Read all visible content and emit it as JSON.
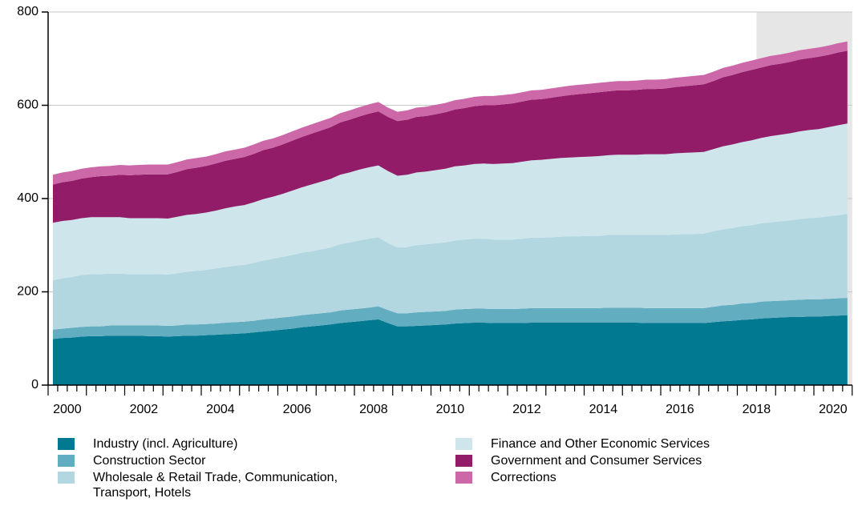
{
  "chart_data": {
    "type": "stacked_area",
    "categories": [
      "2000",
      null,
      null,
      null,
      null,
      null,
      null,
      null,
      "2002",
      null,
      null,
      null,
      null,
      null,
      null,
      null,
      "2004",
      null,
      null,
      null,
      null,
      null,
      null,
      null,
      "2006",
      null,
      null,
      null,
      null,
      null,
      null,
      null,
      "2008",
      null,
      null,
      null,
      null,
      null,
      null,
      null,
      "2010",
      null,
      null,
      null,
      null,
      null,
      null,
      null,
      "2012",
      null,
      null,
      null,
      null,
      null,
      null,
      null,
      "2014",
      null,
      null,
      null,
      null,
      null,
      null,
      null,
      "2016",
      null,
      null,
      null,
      null,
      null,
      null,
      null,
      "2018",
      null,
      null,
      null,
      null,
      null,
      null,
      null,
      "2020",
      null,
      null,
      null
    ],
    "ylim": [
      0,
      800
    ],
    "yticks": [
      0,
      200,
      400,
      600,
      800
    ],
    "grid": true,
    "shaded_from_category": 74,
    "shade_color": "#e6e6e6",
    "series": [
      {
        "name": "Industry (incl. Agriculture)",
        "color": "#007991",
        "values": [
          99,
          101,
          102,
          104,
          105,
          105,
          106,
          106,
          106,
          106,
          105,
          105,
          104,
          105,
          106,
          106,
          107,
          108,
          109,
          110,
          111,
          113,
          115,
          117,
          119,
          121,
          124,
          126,
          128,
          130,
          133,
          135,
          137,
          139,
          141,
          133,
          126,
          126,
          127,
          128,
          129,
          130,
          132,
          133,
          134,
          134,
          133,
          133,
          133,
          133,
          134,
          134,
          134,
          134,
          134,
          134,
          134,
          134,
          134,
          134,
          134,
          134,
          133,
          133,
          133,
          133,
          133,
          133,
          133,
          135,
          137,
          138,
          140,
          141,
          143,
          144,
          145,
          146,
          146,
          147,
          147,
          148,
          149,
          150
        ]
      },
      {
        "name": "Construction Sector",
        "color": "#62adc0",
        "values": [
          20,
          20,
          21,
          21,
          21,
          21,
          22,
          22,
          22,
          22,
          23,
          23,
          23,
          23,
          24,
          24,
          24,
          24,
          25,
          25,
          25,
          25,
          26,
          26,
          26,
          26,
          26,
          26,
          26,
          26,
          27,
          27,
          27,
          27,
          28,
          28,
          28,
          28,
          29,
          29,
          29,
          29,
          30,
          30,
          30,
          30,
          30,
          30,
          30,
          31,
          31,
          31,
          31,
          31,
          31,
          31,
          31,
          31,
          32,
          32,
          32,
          32,
          32,
          32,
          32,
          32,
          32,
          32,
          32,
          33,
          34,
          34,
          35,
          35,
          36,
          36,
          36,
          36,
          37,
          37,
          37,
          37,
          37,
          37
        ]
      },
      {
        "name": "Wholesale & Retail Trade, Communication, Transport, Hotels",
        "color": "#b2d7e1",
        "values": [
          106,
          108,
          109,
          111,
          112,
          112,
          111,
          111,
          110,
          110,
          110,
          110,
          110,
          112,
          113,
          115,
          116,
          118,
          119,
          121,
          122,
          124,
          126,
          128,
          130,
          132,
          134,
          135,
          137,
          139,
          142,
          144,
          146,
          148,
          148,
          144,
          141,
          142,
          144,
          145,
          146,
          147,
          148,
          149,
          150,
          150,
          149,
          149,
          149,
          150,
          151,
          151,
          152,
          153,
          154,
          154,
          155,
          155,
          156,
          156,
          156,
          156,
          157,
          157,
          157,
          158,
          159,
          159,
          160,
          162,
          163,
          165,
          166,
          167,
          168,
          169,
          170,
          171,
          173,
          174,
          175,
          177,
          178,
          180
        ]
      },
      {
        "name": "Finance and Other Economic Services",
        "color": "#cde5eb",
        "values": [
          123,
          123,
          122,
          122,
          122,
          122,
          121,
          121,
          120,
          120,
          120,
          120,
          120,
          121,
          122,
          122,
          123,
          124,
          126,
          127,
          128,
          130,
          132,
          133,
          135,
          138,
          140,
          143,
          145,
          147,
          149,
          150,
          152,
          153,
          154,
          154,
          154,
          155,
          156,
          156,
          157,
          158,
          159,
          159,
          160,
          161,
          162,
          163,
          164,
          165,
          166,
          167,
          168,
          169,
          169,
          170,
          170,
          171,
          171,
          172,
          172,
          172,
          173,
          173,
          173,
          174,
          174,
          175,
          175,
          176,
          178,
          179,
          180,
          182,
          183,
          185,
          186,
          187,
          188,
          189,
          190,
          191,
          193,
          194
        ]
      },
      {
        "name": "Government and Consumer Services",
        "color": "#921c68",
        "values": [
          82,
          83,
          84,
          85,
          86,
          88,
          89,
          91,
          92,
          93,
          94,
          94,
          95,
          96,
          98,
          99,
          100,
          101,
          102,
          102,
          103,
          104,
          105,
          105,
          106,
          107,
          108,
          109,
          110,
          111,
          112,
          113,
          114,
          115,
          116,
          116,
          117,
          118,
          119,
          119,
          120,
          121,
          122,
          123,
          124,
          125,
          126,
          127,
          128,
          129,
          130,
          130,
          131,
          132,
          134,
          135,
          136,
          137,
          137,
          138,
          138,
          139,
          140,
          140,
          141,
          142,
          143,
          144,
          145,
          146,
          148,
          149,
          150,
          151,
          151,
          152,
          152,
          153,
          154,
          154,
          155,
          155,
          156,
          156
        ]
      },
      {
        "name": "Corrections",
        "color": "#cc68a7",
        "values": [
          21,
          21,
          21,
          21,
          21,
          21,
          21,
          21,
          21,
          21,
          21,
          21,
          21,
          21,
          21,
          21,
          20,
          20,
          20,
          20,
          20,
          20,
          20,
          20,
          20,
          20,
          20,
          20,
          20,
          20,
          20,
          20,
          20,
          20,
          20,
          20,
          20,
          20,
          20,
          20,
          20,
          20,
          20,
          20,
          20,
          20,
          20,
          20,
          20,
          20,
          20,
          20,
          20,
          20,
          20,
          20,
          20,
          20,
          20,
          20,
          20,
          20,
          20,
          20,
          20,
          20,
          20,
          20,
          20,
          20,
          20,
          20,
          20,
          20,
          20,
          20,
          20,
          20,
          20,
          20,
          20,
          20,
          20,
          20
        ]
      }
    ]
  }
}
